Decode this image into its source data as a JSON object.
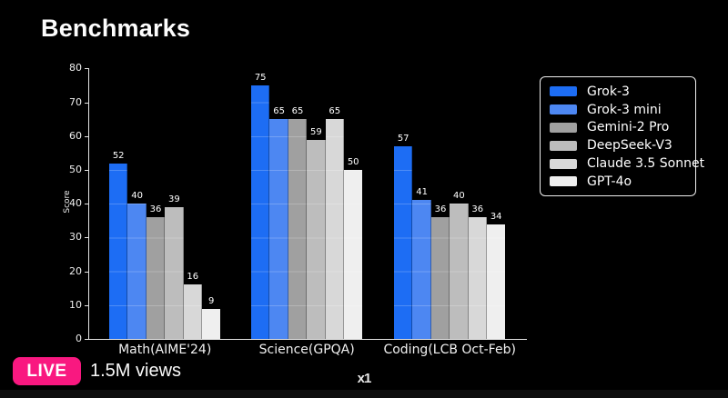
{
  "page": {
    "title": "Benchmarks",
    "watermark": "x1"
  },
  "live": {
    "badge": "LIVE",
    "views": "1.5M views",
    "badge_color": "#f91880"
  },
  "chart_data": {
    "type": "bar",
    "title": "",
    "xlabel": "",
    "ylabel": "Score",
    "ylim": [
      0,
      80
    ],
    "yticks": [
      0,
      10,
      20,
      30,
      40,
      50,
      60,
      70,
      80
    ],
    "grid": "faint horizontal gridlines visible inside bars every 10 units",
    "legend_position": "outside upper right, boxed with white rounded border",
    "background_color": "#000000",
    "axis_color": "#e6e6e6",
    "categories": [
      "Math(AIME'24)",
      "Science(GPQA)",
      "Coding(LCB Oct-Feb)"
    ],
    "series": [
      {
        "name": "Grok-3",
        "color": "#1d6df4",
        "values": [
          52,
          75,
          57
        ]
      },
      {
        "name": "Grok-3 mini",
        "color": "#4d87f2",
        "values": [
          40,
          65,
          41
        ]
      },
      {
        "name": "Gemini-2 Pro",
        "color": "#a0a0a0",
        "values": [
          36,
          65,
          36
        ]
      },
      {
        "name": "DeepSeek-V3",
        "color": "#bdbdbd",
        "values": [
          39,
          59,
          40
        ]
      },
      {
        "name": "Claude 3.5 Sonnet",
        "color": "#d8d8d8",
        "values": [
          16,
          65,
          36
        ]
      },
      {
        "name": "GPT-4o",
        "color": "#efefef",
        "values": [
          9,
          50,
          34
        ]
      }
    ]
  }
}
